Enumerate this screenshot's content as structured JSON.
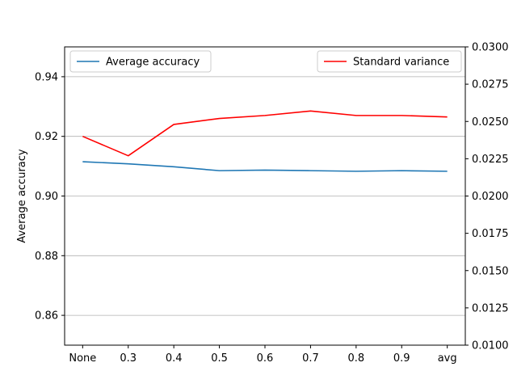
{
  "chart_data": {
    "type": "line",
    "categories": [
      "None",
      "0.3",
      "0.4",
      "0.5",
      "0.6",
      "0.7",
      "0.8",
      "0.9",
      "avg"
    ],
    "y_left": {
      "label": "Average accuracy",
      "lim": [
        0.85,
        0.95
      ],
      "ticks": [
        "0.86",
        "0.88",
        "0.90",
        "0.92",
        "0.94"
      ],
      "grid": true
    },
    "y_right": {
      "label": "",
      "lim": [
        0.01,
        0.03
      ],
      "ticks": [
        "0.0100",
        "0.0125",
        "0.0150",
        "0.0175",
        "0.0200",
        "0.0225",
        "0.0250",
        "0.0275",
        "0.0300"
      ]
    },
    "series": [
      {
        "name": "Average accuracy",
        "axis": "left",
        "color": "#1f77b4",
        "values": [
          0.9115,
          0.9108,
          0.9098,
          0.9085,
          0.9087,
          0.9085,
          0.9083,
          0.9085,
          0.9083
        ]
      },
      {
        "name": "Standard variance",
        "axis": "right",
        "color": "#ff0000",
        "values": [
          0.024,
          0.0227,
          0.0248,
          0.0252,
          0.0254,
          0.0257,
          0.0254,
          0.0254,
          0.0253
        ]
      }
    ],
    "legends": [
      {
        "label": "Average accuracy",
        "color": "#1f77b4",
        "placement": "upper-left"
      },
      {
        "label": "Standard variance",
        "color": "#ff0000",
        "placement": "upper-right"
      }
    ]
  }
}
